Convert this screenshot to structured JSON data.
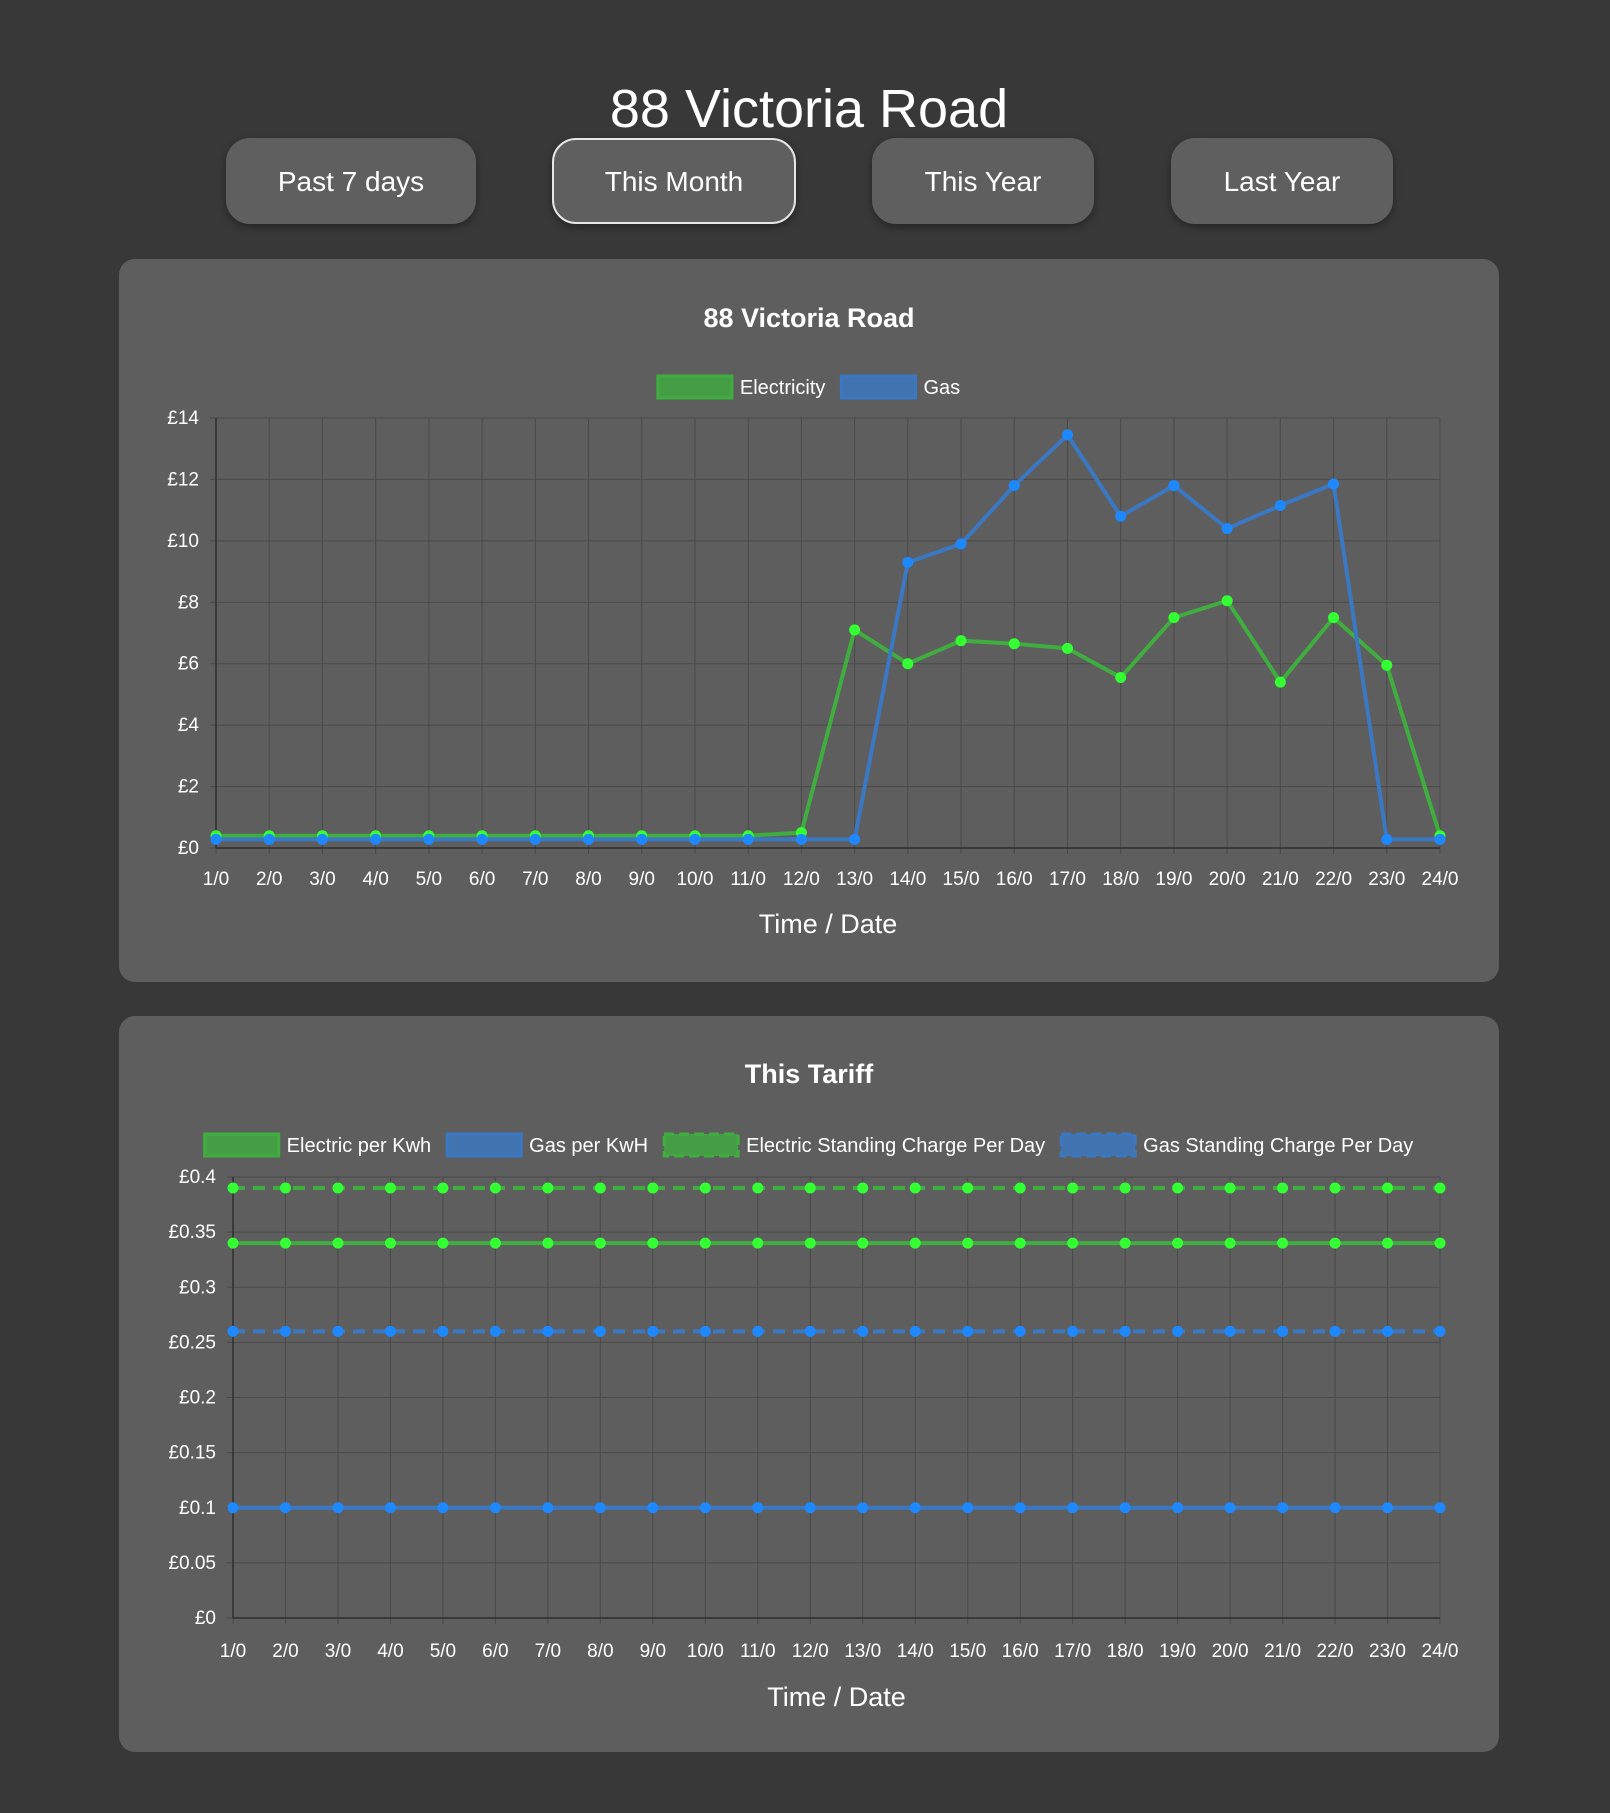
{
  "page": {
    "title": "88 Victoria Road"
  },
  "range_buttons": [
    {
      "label": "Past 7 days",
      "active": false
    },
    {
      "label": "This Month",
      "active": true
    },
    {
      "label": "This Year",
      "active": false
    },
    {
      "label": "Last Year",
      "active": false
    }
  ],
  "colors": {
    "background": "#383838",
    "card": "#5e5e5e",
    "grid": "#4a4a4a",
    "electric_line": "#3fae3f",
    "electric_point": "#33ff33",
    "gas_line": "#3a78c4",
    "gas_point": "#1e88ff"
  },
  "chart_data": [
    {
      "id": "usage",
      "type": "line",
      "title": "88 Victoria Road",
      "xlabel": "Time / Date",
      "ylabel": "",
      "categories": [
        "1/0",
        "2/0",
        "3/0",
        "4/0",
        "5/0",
        "6/0",
        "7/0",
        "8/0",
        "9/0",
        "10/0",
        "11/0",
        "12/0",
        "13/0",
        "14/0",
        "15/0",
        "16/0",
        "17/0",
        "18/0",
        "19/0",
        "20/0",
        "21/0",
        "22/0",
        "23/0",
        "24/0"
      ],
      "yticks": [
        {
          "value": 0,
          "label": "£0"
        },
        {
          "value": 2,
          "label": "£2"
        },
        {
          "value": 4,
          "label": "£4"
        },
        {
          "value": 6,
          "label": "£6"
        },
        {
          "value": 8,
          "label": "£8"
        },
        {
          "value": 10,
          "label": "£10"
        },
        {
          "value": 12,
          "label": "£12"
        },
        {
          "value": 14,
          "label": "£14"
        }
      ],
      "ylim": [
        0,
        14
      ],
      "grid": true,
      "legend_position": "top-center",
      "series": [
        {
          "name": "Electricity",
          "key": "electric",
          "dashed": false,
          "values": [
            0.4,
            0.4,
            0.4,
            0.4,
            0.4,
            0.4,
            0.4,
            0.4,
            0.4,
            0.4,
            0.4,
            0.5,
            7.1,
            6.0,
            6.75,
            6.65,
            6.5,
            5.55,
            7.5,
            8.05,
            5.4,
            7.5,
            5.95,
            0.4
          ]
        },
        {
          "name": "Gas",
          "key": "gas",
          "dashed": false,
          "values": [
            0.28,
            0.28,
            0.28,
            0.28,
            0.28,
            0.28,
            0.28,
            0.28,
            0.28,
            0.28,
            0.28,
            0.28,
            0.28,
            9.3,
            9.9,
            11.8,
            13.45,
            10.8,
            11.8,
            10.4,
            11.15,
            11.85,
            0.28,
            0.28
          ]
        }
      ]
    },
    {
      "id": "tariff",
      "type": "line",
      "title": "This Tariff",
      "xlabel": "Time / Date",
      "ylabel": "",
      "categories": [
        "1/0",
        "2/0",
        "3/0",
        "4/0",
        "5/0",
        "6/0",
        "7/0",
        "8/0",
        "9/0",
        "10/0",
        "11/0",
        "12/0",
        "13/0",
        "14/0",
        "15/0",
        "16/0",
        "17/0",
        "18/0",
        "19/0",
        "20/0",
        "21/0",
        "22/0",
        "23/0",
        "24/0"
      ],
      "yticks": [
        {
          "value": 0,
          "label": "£0"
        },
        {
          "value": 0.05,
          "label": "£0.05"
        },
        {
          "value": 0.1,
          "label": "£0.1"
        },
        {
          "value": 0.15,
          "label": "£0.15"
        },
        {
          "value": 0.2,
          "label": "£0.2"
        },
        {
          "value": 0.25,
          "label": "£0.25"
        },
        {
          "value": 0.3,
          "label": "£0.3"
        },
        {
          "value": 0.35,
          "label": "£0.35"
        },
        {
          "value": 0.4,
          "label": "£0.4"
        }
      ],
      "ylim": [
        0,
        0.4
      ],
      "grid": true,
      "legend_position": "top-center",
      "series": [
        {
          "name": "Electric per Kwh",
          "key": "electric",
          "dashed": false,
          "values": [
            0.34,
            0.34,
            0.34,
            0.34,
            0.34,
            0.34,
            0.34,
            0.34,
            0.34,
            0.34,
            0.34,
            0.34,
            0.34,
            0.34,
            0.34,
            0.34,
            0.34,
            0.34,
            0.34,
            0.34,
            0.34,
            0.34,
            0.34,
            0.34
          ]
        },
        {
          "name": "Gas per KwH",
          "key": "gas",
          "dashed": false,
          "values": [
            0.1,
            0.1,
            0.1,
            0.1,
            0.1,
            0.1,
            0.1,
            0.1,
            0.1,
            0.1,
            0.1,
            0.1,
            0.1,
            0.1,
            0.1,
            0.1,
            0.1,
            0.1,
            0.1,
            0.1,
            0.1,
            0.1,
            0.1,
            0.1
          ]
        },
        {
          "name": "Electric Standing Charge Per Day",
          "key": "electric",
          "dashed": true,
          "values": [
            0.39,
            0.39,
            0.39,
            0.39,
            0.39,
            0.39,
            0.39,
            0.39,
            0.39,
            0.39,
            0.39,
            0.39,
            0.39,
            0.39,
            0.39,
            0.39,
            0.39,
            0.39,
            0.39,
            0.39,
            0.39,
            0.39,
            0.39,
            0.39
          ]
        },
        {
          "name": "Gas Standing Charge Per Day",
          "key": "gas",
          "dashed": true,
          "values": [
            0.26,
            0.26,
            0.26,
            0.26,
            0.26,
            0.26,
            0.26,
            0.26,
            0.26,
            0.26,
            0.26,
            0.26,
            0.26,
            0.26,
            0.26,
            0.26,
            0.26,
            0.26,
            0.26,
            0.26,
            0.26,
            0.26,
            0.26,
            0.26
          ]
        }
      ]
    }
  ]
}
